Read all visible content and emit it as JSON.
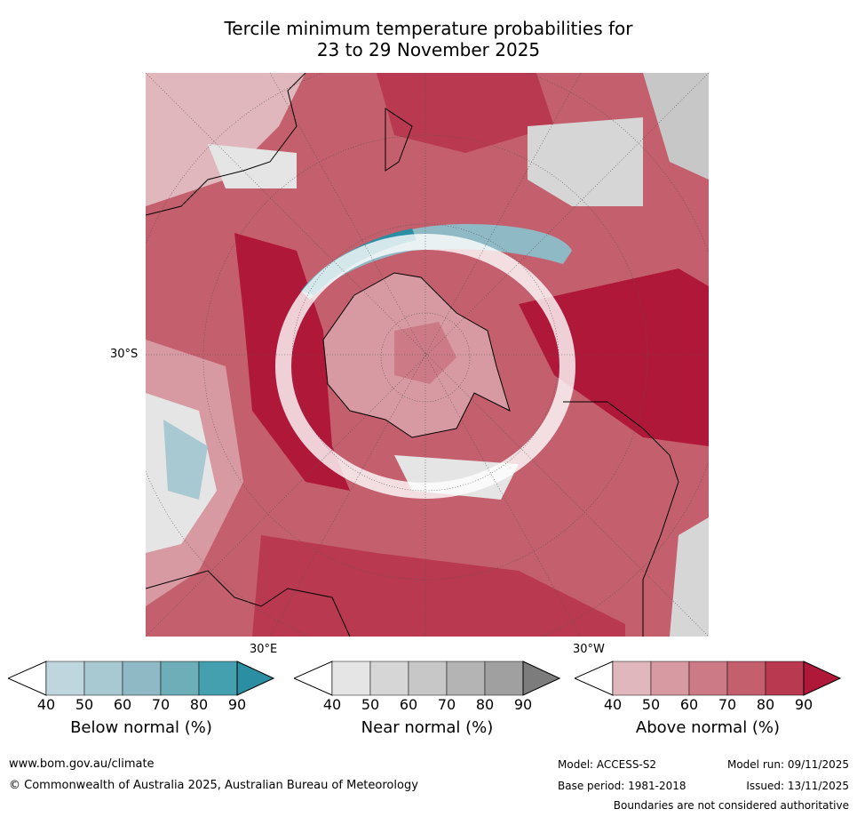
{
  "title": {
    "line1": "Tercile minimum temperature probabilities for",
    "line2": "23 to 29 November 2025"
  },
  "map": {
    "lat_label": "30°S",
    "lon_labels": [
      "30°E",
      "30°W"
    ],
    "colors": {
      "above": [
        "#e0b7bc",
        "#d79aa2",
        "#cc7b86",
        "#c45f6d",
        "#b93a50",
        "#b0183a"
      ],
      "near": [
        "#e5e5e5",
        "#d6d6d6",
        "#c7c7c7",
        "#b4b4b4",
        "#a0a0a0",
        "#7c7c7c"
      ],
      "below": [
        "#bfd6de",
        "#a8c9d1",
        "#8fb9c4",
        "#6daeb9",
        "#449fae",
        "#2c8ea2"
      ]
    }
  },
  "legends": [
    {
      "label": "Below normal (%)",
      "ticks": [
        "40",
        "50",
        "60",
        "70",
        "80",
        "90"
      ],
      "palette": "below"
    },
    {
      "label": "Near normal (%)",
      "ticks": [
        "40",
        "50",
        "60",
        "70",
        "80",
        "90"
      ],
      "palette": "near"
    },
    {
      "label": "Above normal (%)",
      "ticks": [
        "40",
        "50",
        "60",
        "70",
        "80",
        "90"
      ],
      "palette": "above"
    }
  ],
  "footer": {
    "url": "www.bom.gov.au/climate",
    "copyright": "© Commonwealth of Australia 2025, Australian Bureau of Meteorology",
    "model": "Model: ACCESS-S2",
    "model_run": "Model run: 09/11/2025",
    "base_period": "Base period: 1981-2018",
    "issued": "Issued: 13/11/2025",
    "disclaimer": "Boundaries are not considered authoritative"
  }
}
